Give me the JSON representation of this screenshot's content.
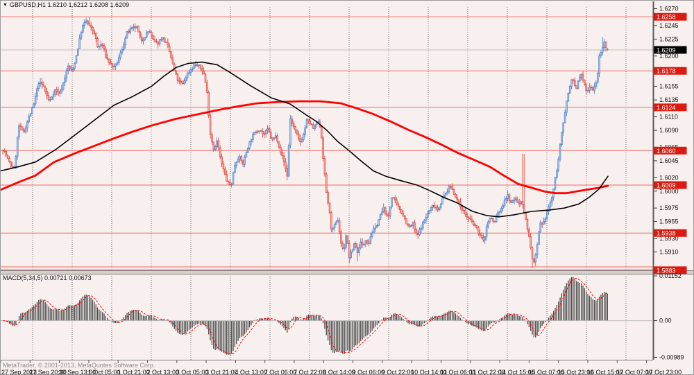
{
  "title": {
    "symbol_period": "GBPUSD,H1",
    "ohlc": "1.6210 1.6212 1.6208 1.6209"
  },
  "indicator": {
    "label": "MACD(5,34,5)",
    "values": "0.00721 0.00673"
  },
  "footer": {
    "copyright": "MetaTrader, © 2001-2013, MetaQuotes Software Corp."
  },
  "colors": {
    "background": "#f8f0ee",
    "grid": "#6e6e6e",
    "candle_up_stroke": "#3f74c7",
    "candle_up_fill": "#aac9e9",
    "candle_down_stroke": "#df382d",
    "candle_down_fill": "#f2aaa4",
    "level_line": "#f26560",
    "level_tag_bg": "#dd1a10",
    "current_tag_bg": "#000000",
    "ma_red": "#ff0000",
    "ma_black": "#000000",
    "macd_bar": "#4a4a4a",
    "macd_signal": "#ff0000",
    "bid_line": "#c0c0c0",
    "axis_text": "#111111",
    "separator_fill": "#d4d0c8"
  },
  "chart_data": {
    "type": "candlestick",
    "symbol": "GBPUSD",
    "timeframe": "H1",
    "current_bar": {
      "open": 1.621,
      "high": 1.6212,
      "low": 1.6208,
      "close": 1.6209
    },
    "current_price": 1.6209,
    "price_range_visible": [
      1.5879,
      1.6273
    ],
    "horizontal_levels": [
      1.6258,
      1.6178,
      1.6124,
      1.606,
      1.6009,
      1.5938,
      1.5883
    ],
    "extra_level_pair": [
      1.5888,
      1.5884
    ],
    "y_ticks": [
      1.627,
      1.6245,
      1.6225,
      1.62,
      1.6155,
      1.6135,
      1.611,
      1.609,
      1.6065,
      1.6045,
      1.602,
      1.6,
      1.5975,
      1.5955,
      1.593,
      1.591
    ],
    "x_labels": [
      "27 Sep 2013",
      "27 Sep 20:00",
      "30 Sep 13:00",
      "1 Oct 05:00",
      "1 Oct 21:00",
      "2 Oct 13:00",
      "3 Oct 05:00",
      "3 Oct 21:00",
      "4 Oct 13:00",
      "7 Oct 06:00",
      "7 Oct 22:00",
      "8 Oct 14:00",
      "9 Oct 06:00",
      "9 Oct 22:00",
      "10 Oct 14:00",
      "11 Oct 06:00",
      "11 Oct 22:00",
      "14 Oct 15:00",
      "15 Oct 07:00",
      "15 Oct 23:00",
      "16 Oct 15:00",
      "17 Oct 07:00",
      "17 Oct 23:00"
    ],
    "price_path_anchors": [
      [
        0,
        1.6068
      ],
      [
        7,
        1.6055
      ],
      [
        14,
        1.6038
      ],
      [
        20,
        1.6034
      ],
      [
        26,
        1.6098
      ],
      [
        33,
        1.6086
      ],
      [
        40,
        1.6108
      ],
      [
        47,
        1.6125
      ],
      [
        55,
        1.6162
      ],
      [
        62,
        1.6154
      ],
      [
        70,
        1.6132
      ],
      [
        78,
        1.615
      ],
      [
        85,
        1.6144
      ],
      [
        90,
        1.616
      ],
      [
        97,
        1.6185
      ],
      [
        103,
        1.6176
      ],
      [
        110,
        1.6205
      ],
      [
        117,
        1.6242
      ],
      [
        123,
        1.6252
      ],
      [
        128,
        1.6244
      ],
      [
        135,
        1.6234
      ],
      [
        140,
        1.6212
      ],
      [
        146,
        1.6218
      ],
      [
        152,
        1.6198
      ],
      [
        158,
        1.6188
      ],
      [
        164,
        1.6182
      ],
      [
        170,
        1.6196
      ],
      [
        176,
        1.6214
      ],
      [
        182,
        1.6234
      ],
      [
        189,
        1.624
      ],
      [
        196,
        1.6243
      ],
      [
        202,
        1.6222
      ],
      [
        208,
        1.623
      ],
      [
        214,
        1.6238
      ],
      [
        220,
        1.6222
      ],
      [
        226,
        1.6218
      ],
      [
        232,
        1.6228
      ],
      [
        238,
        1.622
      ],
      [
        244,
        1.6204
      ],
      [
        250,
        1.6178
      ],
      [
        256,
        1.6162
      ],
      [
        262,
        1.6158
      ],
      [
        268,
        1.6172
      ],
      [
        274,
        1.618
      ],
      [
        280,
        1.6188
      ],
      [
        286,
        1.6184
      ],
      [
        292,
        1.6177
      ],
      [
        297,
        1.615
      ],
      [
        302,
        1.6085
      ],
      [
        307,
        1.6062
      ],
      [
        312,
        1.6075
      ],
      [
        317,
        1.6045
      ],
      [
        322,
        1.6028
      ],
      [
        327,
        1.6012
      ],
      [
        332,
        1.6008
      ],
      [
        337,
        1.6038
      ],
      [
        343,
        1.6052
      ],
      [
        349,
        1.604
      ],
      [
        355,
        1.6062
      ],
      [
        361,
        1.6078
      ],
      [
        367,
        1.6088
      ],
      [
        373,
        1.6092
      ],
      [
        379,
        1.6083
      ],
      [
        385,
        1.6092
      ],
      [
        391,
        1.6075
      ],
      [
        397,
        1.6082
      ],
      [
        403,
        1.606
      ],
      [
        409,
        1.604
      ],
      [
        413,
        1.6022
      ],
      [
        417,
        1.6108
      ],
      [
        421,
        1.6098
      ],
      [
        426,
        1.6085
      ],
      [
        431,
        1.6072
      ],
      [
        436,
        1.6082
      ],
      [
        441,
        1.6105
      ],
      [
        446,
        1.61
      ],
      [
        451,
        1.6092
      ],
      [
        456,
        1.6103
      ],
      [
        461,
        1.6095
      ],
      [
        465,
        1.6045
      ],
      [
        469,
        1.6
      ],
      [
        473,
        1.5975
      ],
      [
        477,
        1.594
      ],
      [
        481,
        1.5948
      ],
      [
        486,
        1.5958
      ],
      [
        490,
        1.5925
      ],
      [
        494,
        1.591
      ],
      [
        498,
        1.5938
      ],
      [
        502,
        1.5902
      ],
      [
        506,
        1.591
      ],
      [
        510,
        1.5925
      ],
      [
        514,
        1.5908
      ],
      [
        518,
        1.5925
      ],
      [
        522,
        1.5918
      ],
      [
        526,
        1.593
      ],
      [
        530,
        1.5922
      ],
      [
        534,
        1.5938
      ],
      [
        540,
        1.5945
      ],
      [
        546,
        1.5962
      ],
      [
        552,
        1.5975
      ],
      [
        558,
        1.5958
      ],
      [
        564,
        1.5995
      ],
      [
        570,
        1.598
      ],
      [
        576,
        1.5972
      ],
      [
        582,
        1.596
      ],
      [
        588,
        1.5945
      ],
      [
        594,
        1.5952
      ],
      [
        600,
        1.5932
      ],
      [
        606,
        1.5948
      ],
      [
        612,
        1.596
      ],
      [
        618,
        1.5972
      ],
      [
        624,
        1.598
      ],
      [
        630,
        1.5972
      ],
      [
        636,
        1.5988
      ],
      [
        642,
        1.5998
      ],
      [
        648,
        1.6008
      ],
      [
        654,
        1.5995
      ],
      [
        660,
        1.5982
      ],
      [
        666,
        1.5972
      ],
      [
        672,
        1.5962
      ],
      [
        678,
        1.5955
      ],
      [
        684,
        1.5948
      ],
      [
        690,
        1.5936
      ],
      [
        696,
        1.5925
      ],
      [
        701,
        1.5952
      ],
      [
        706,
        1.5962
      ],
      [
        711,
        1.5952
      ],
      [
        716,
        1.5968
      ],
      [
        721,
        1.5972
      ],
      [
        726,
        1.5988
      ],
      [
        731,
        1.5993
      ],
      [
        736,
        1.598
      ],
      [
        741,
        1.5992
      ],
      [
        746,
        1.598
      ],
      [
        751,
        1.5988
      ],
      [
        753,
        1.5975
      ],
      [
        757,
        1.5955
      ],
      [
        761,
        1.5935
      ],
      [
        765,
        1.5905
      ],
      [
        769,
        1.5892
      ],
      [
        773,
        1.5918
      ],
      [
        777,
        1.5952
      ],
      [
        781,
        1.5948
      ],
      [
        785,
        1.5962
      ],
      [
        789,
        1.5975
      ],
      [
        793,
        1.5985
      ],
      [
        797,
        1.6005
      ],
      [
        801,
        1.603
      ],
      [
        805,
        1.6058
      ],
      [
        809,
        1.609
      ],
      [
        813,
        1.6118
      ],
      [
        817,
        1.6142
      ],
      [
        821,
        1.6158
      ],
      [
        823,
        1.617
      ],
      [
        825,
        1.6162
      ],
      [
        829,
        1.6148
      ],
      [
        833,
        1.6168
      ],
      [
        837,
        1.6172
      ],
      [
        841,
        1.6158
      ],
      [
        845,
        1.6145
      ],
      [
        849,
        1.6158
      ],
      [
        853,
        1.615
      ],
      [
        857,
        1.6158
      ],
      [
        860,
        1.6172
      ],
      [
        862,
        1.6195
      ],
      [
        864,
        1.6208
      ],
      [
        866,
        1.62
      ],
      [
        868,
        1.6222
      ],
      [
        870,
        1.6218
      ],
      [
        872,
        1.6212
      ],
      [
        874,
        1.6209
      ]
    ],
    "wick_spikes": [
      {
        "x": 127,
        "high": 1.6258
      },
      {
        "x": 413,
        "low": 1.6016
      },
      {
        "x": 502,
        "low": 1.5893
      },
      {
        "x": 514,
        "low": 1.5896
      },
      {
        "x": 753,
        "high": 1.6055
      },
      {
        "x": 766,
        "low": 1.5886
      },
      {
        "x": 770,
        "low": 1.5889
      },
      {
        "x": 868,
        "high": 1.6228
      }
    ],
    "ma_black_points": [
      [
        0,
        1.603
      ],
      [
        25,
        1.6036
      ],
      [
        50,
        1.6043
      ],
      [
        80,
        1.6062
      ],
      [
        107,
        1.6083
      ],
      [
        135,
        1.6105
      ],
      [
        163,
        1.6127
      ],
      [
        190,
        1.614
      ],
      [
        217,
        1.6155
      ],
      [
        235,
        1.617
      ],
      [
        253,
        1.6183
      ],
      [
        270,
        1.6189
      ],
      [
        290,
        1.6191
      ],
      [
        312,
        1.6187
      ],
      [
        330,
        1.6176
      ],
      [
        360,
        1.6156
      ],
      [
        390,
        1.6138
      ],
      [
        417,
        1.6129
      ],
      [
        440,
        1.6113
      ],
      [
        455,
        1.6103
      ],
      [
        470,
        1.609
      ],
      [
        485,
        1.6074
      ],
      [
        503,
        1.6059
      ],
      [
        520,
        1.6044
      ],
      [
        537,
        1.603
      ],
      [
        555,
        1.6022
      ],
      [
        575,
        1.6016
      ],
      [
        600,
        1.6009
      ],
      [
        620,
        1.6
      ],
      [
        640,
        1.599
      ],
      [
        657,
        1.5983
      ],
      [
        680,
        1.597
      ],
      [
        700,
        1.5964
      ],
      [
        718,
        1.5962
      ],
      [
        740,
        1.5965
      ],
      [
        765,
        1.597
      ],
      [
        790,
        1.5972
      ],
      [
        812,
        1.5975
      ],
      [
        833,
        1.5981
      ],
      [
        848,
        1.5991
      ],
      [
        862,
        1.6003
      ],
      [
        875,
        1.6022
      ]
    ],
    "ma_red_points": [
      [
        0,
        1.6002
      ],
      [
        25,
        1.6013
      ],
      [
        50,
        1.6023
      ],
      [
        77,
        1.6043
      ],
      [
        107,
        1.6056
      ],
      [
        135,
        1.6067
      ],
      [
        163,
        1.6078
      ],
      [
        190,
        1.6088
      ],
      [
        217,
        1.6097
      ],
      [
        253,
        1.6107
      ],
      [
        285,
        1.6114
      ],
      [
        318,
        1.6121
      ],
      [
        345,
        1.6126
      ],
      [
        370,
        1.613
      ],
      [
        400,
        1.6132
      ],
      [
        430,
        1.6133
      ],
      [
        460,
        1.6133
      ],
      [
        490,
        1.613
      ],
      [
        515,
        1.6122
      ],
      [
        537,
        1.6114
      ],
      [
        562,
        1.6103
      ],
      [
        587,
        1.6091
      ],
      [
        612,
        1.608
      ],
      [
        637,
        1.6068
      ],
      [
        660,
        1.6056
      ],
      [
        685,
        1.6045
      ],
      [
        705,
        1.6036
      ],
      [
        725,
        1.6023
      ],
      [
        745,
        1.6011
      ],
      [
        765,
        1.6005
      ],
      [
        785,
        1.5999
      ],
      [
        800,
        1.5997
      ],
      [
        815,
        1.5997
      ],
      [
        832,
        1.6
      ],
      [
        850,
        1.6003
      ],
      [
        862,
        1.6005
      ],
      [
        875,
        1.6008
      ]
    ],
    "macd": {
      "parameters": "5,34,5",
      "main_current": 0.00721,
      "signal_current": 0.00673,
      "axis_labels": [
        "0.01152",
        "0.00",
        "-0.00989"
      ],
      "scale_max": 0.01152,
      "scale_min": -0.00989
    }
  }
}
